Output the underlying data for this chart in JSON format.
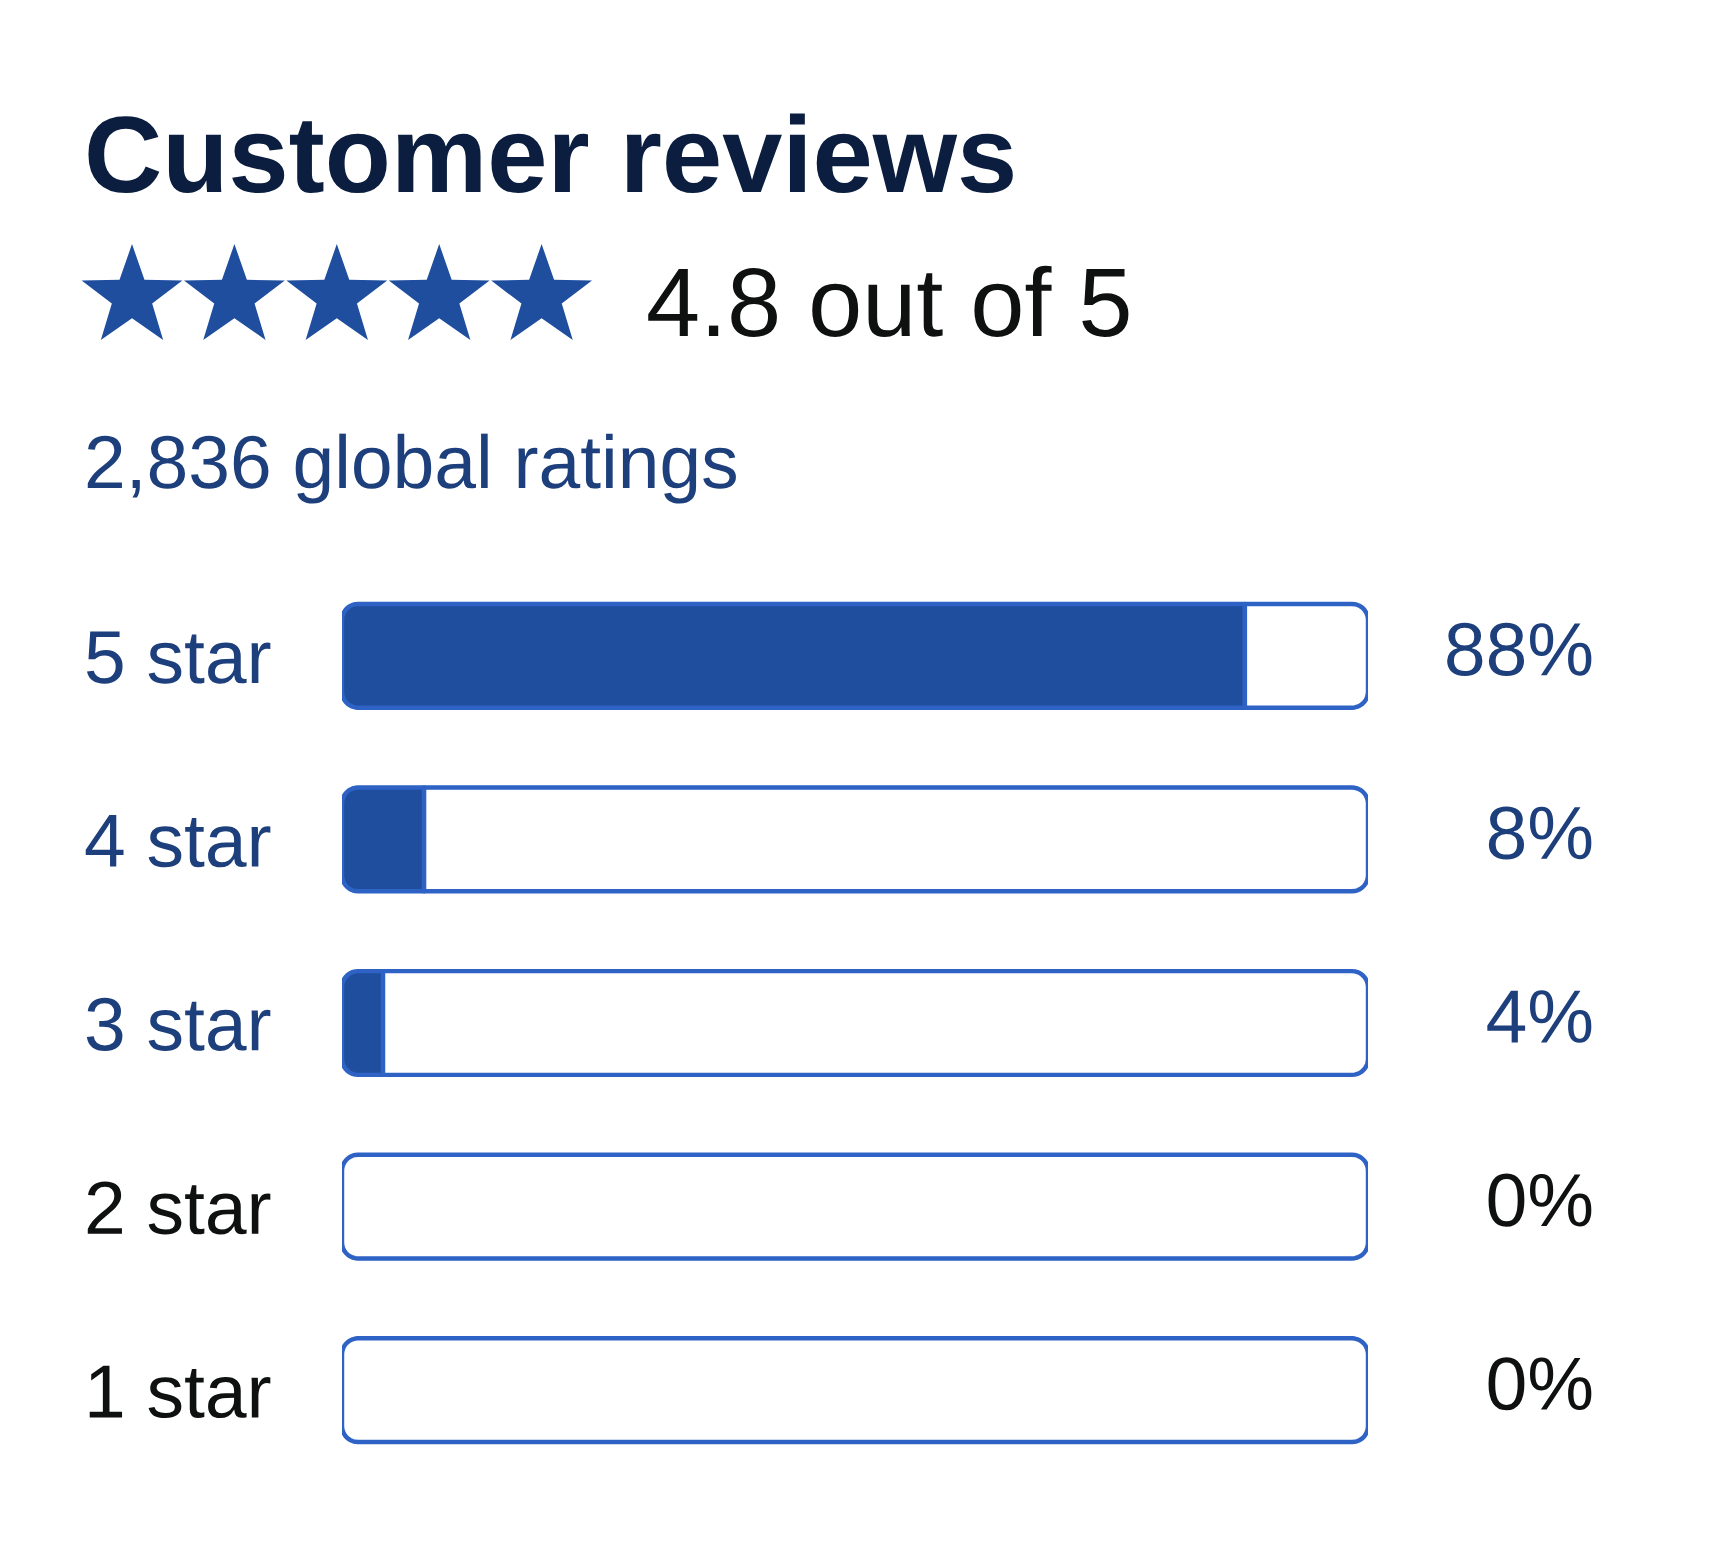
{
  "chart_data": {
    "type": "bar",
    "orientation": "horizontal",
    "stacked": true,
    "title": "Customer reviews",
    "subtitle": "4.8 out of 5",
    "annotations": [
      "2,836 global ratings"
    ],
    "categories": [
      "5 star",
      "4 star",
      "3 star",
      "2 star",
      "1 star"
    ],
    "series": [
      {
        "color": "#1f4e9f",
        "values": [
          88,
          8,
          4,
          0,
          0
        ],
        "value_labels": [
          "88%",
          "8%",
          "4%",
          "0%",
          "0%"
        ]
      },
      {
        "color": "#ffffff",
        "values": [
          12,
          92,
          96,
          100,
          100
        ]
      }
    ],
    "xlim": [
      0,
      100
    ],
    "tick_labels": "y"
  }
}
